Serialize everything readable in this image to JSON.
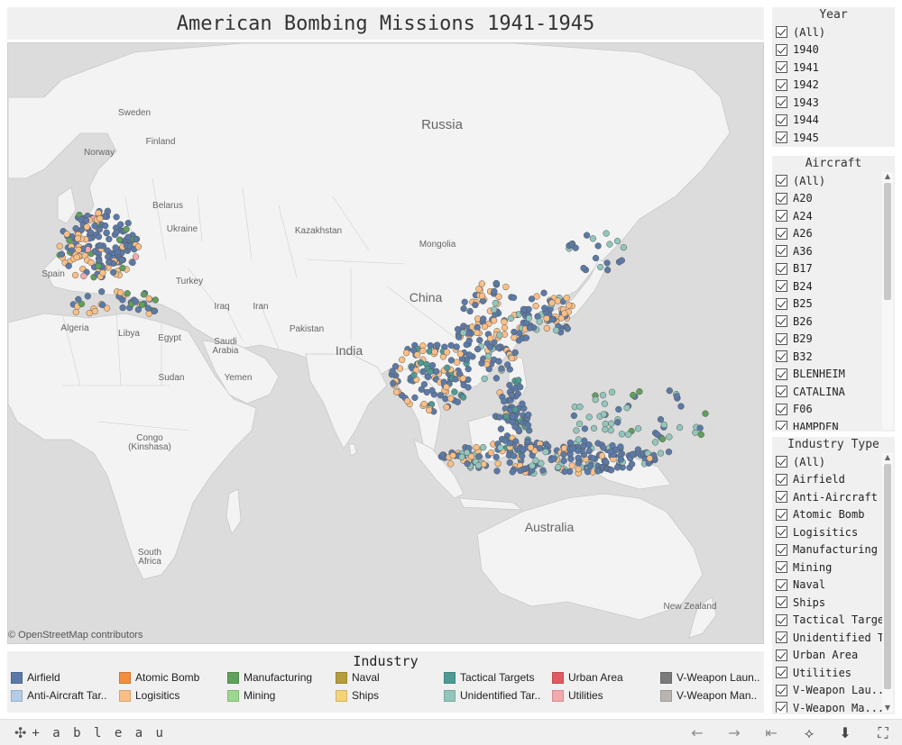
{
  "title": "American Bombing Missions 1941-1945",
  "attribution": "© OpenStreetMap contributors",
  "map_labels": {
    "russia": "Russia",
    "sweden": "Sweden",
    "finland": "Finland",
    "norway": "Norway",
    "belarus": "Belarus",
    "ukraine": "Ukraine",
    "kazakhstan": "Kazakhstan",
    "mongolia": "Mongolia",
    "china": "China",
    "spain": "Spain",
    "turkey": "Turkey",
    "iraq": "Iraq",
    "iran": "Iran",
    "algeria": "Algeria",
    "libya": "Libya",
    "egypt": "Egypt",
    "saudi_arabia_1": "Saudi",
    "saudi_arabia_2": "Arabia",
    "pakistan": "Pakistan",
    "india": "India",
    "yemen": "Yemen",
    "sudan": "Sudan",
    "congo_1": "Congo",
    "congo_2": "(Kinshasa)",
    "australia": "Australia",
    "south_africa_1": "South",
    "south_africa_2": "Africa",
    "new_zealand": "New Zealand"
  },
  "year_filter": {
    "title": "Year",
    "items": [
      "(All)",
      "1940",
      "1941",
      "1942",
      "1943",
      "1944",
      "1945"
    ]
  },
  "aircraft_filter": {
    "title": "Aircraft",
    "items": [
      "(All)",
      "A20",
      "A24",
      "A26",
      "A36",
      "B17",
      "B24",
      "B25",
      "B26",
      "B29",
      "B32",
      "BLENHEIM",
      "CATALINA",
      "F06",
      "HAMPDEN"
    ]
  },
  "industry_filter": {
    "title": "Industry Type",
    "items": [
      "(All)",
      "Airfield",
      "Anti-Aircraft T...",
      "Atomic Bomb",
      "Logisitics",
      "Manufacturing",
      "Mining",
      "Naval",
      "Ships",
      "Tactical Targets",
      "Unidentified T...",
      "Urban Area",
      "Utilities",
      "V-Weapon Lau...",
      "V-Weapon Ma..."
    ]
  },
  "legend": {
    "title": "Industry",
    "items": [
      {
        "label": "Airfield",
        "color": "#5b7aa8"
      },
      {
        "label": "Anti-Aircraft Tar..",
        "color": "#b4cde6"
      },
      {
        "label": "Atomic Bomb",
        "color": "#f28e3c"
      },
      {
        "label": "Logisitics",
        "color": "#fbbf85"
      },
      {
        "label": "Manufacturing",
        "color": "#5fa05a"
      },
      {
        "label": "Mining",
        "color": "#9dd88f"
      },
      {
        "label": "Naval",
        "color": "#b49d3a"
      },
      {
        "label": "Ships",
        "color": "#f4d477"
      },
      {
        "label": "Tactical Targets",
        "color": "#4e9b95"
      },
      {
        "label": "Unidentified Tar..",
        "color": "#92c6bc"
      },
      {
        "label": "Urban Area",
        "color": "#e05a62"
      },
      {
        "label": "Utilities",
        "color": "#f5a9ad"
      },
      {
        "label": "V-Weapon Laun..",
        "color": "#7b7b7b"
      },
      {
        "label": "V-Weapon Man..",
        "color": "#bab4b0"
      }
    ]
  },
  "colors": {
    "map_bg": "#dcdcdc",
    "land": "#f3f3f3",
    "border": "#c9c9c9"
  },
  "footer": {
    "logo_text": "+ a b l e a u",
    "tools": [
      "undo-icon",
      "redo-icon",
      "revert-icon",
      "share-icon",
      "download-icon",
      "fullscreen-icon"
    ]
  }
}
